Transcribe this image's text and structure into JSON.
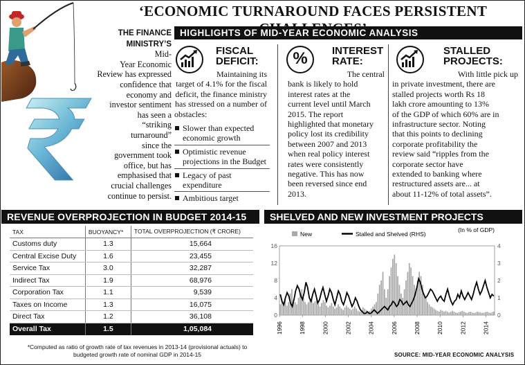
{
  "headline": "‘ECONOMIC TURNAROUND FACES PERSISTENT CHALLENGES’",
  "intro": {
    "lead": "THE FINANCE MINISTRY’S",
    "lines": [
      "Mid-",
      "Year Economic",
      "Review has expressed",
      "confidence that",
      "economy and",
      "investor sentiment",
      "has seen a",
      "“striking",
      "turnaround”",
      "since the",
      "government took",
      "office, but has",
      "emphasised that",
      "crucial challenges",
      "continue to persist."
    ]
  },
  "highlights_title": "HIGHLIGHTS OF MID-YEAR ECONOMIC ANALYSIS",
  "fiscal": {
    "title_1": "FISCAL",
    "title_2": "DEFICIT:",
    "body": [
      "Maintaining its",
      "target of 4.1% for the fiscal",
      "deficit, the finance ministry",
      "has stressed on a number of",
      "obstacles:"
    ],
    "bullets": [
      "Slower than expected economic growth",
      "Optimistic revenue projections in the Budget",
      "Legacy of past expenditure",
      "Ambitious target"
    ]
  },
  "interest": {
    "title_1": "INTEREST",
    "title_2": "RATE:",
    "icon_symbol": "%",
    "body": [
      "The central",
      "bank is likely to hold",
      "interest rates at the",
      "current level until March",
      "2015. The report",
      "highlighted that monetary",
      "policy lost its credibility",
      "between 2007 and 2013",
      "when real policy interest",
      "rates were consistently",
      "negative. This has now",
      "been reversed since end",
      "2013."
    ]
  },
  "stalled": {
    "title_1": "STALLED",
    "title_2": "PROJECTS:",
    "body": [
      "With little pick up",
      "in private investment, there are",
      "stalled projects worth Rs 18",
      "lakh crore amounting to 13%",
      "of the GDP of which 60% are in",
      "infrastructure sector. Noting",
      "that this points to declining",
      "corporate profitability the",
      "review said “ripples from the",
      "corporate sector have",
      "extended to banking where",
      "restructured assets are... at",
      "about 11-12% of total assets”."
    ]
  },
  "revenue": {
    "title": "REVENUE OVERPROJECTION IN BUDGET 2014-15",
    "headers": [
      "TAX",
      "BUOYANCY*",
      "TOTAL OVERPROJECTION (₹ CRORE)"
    ],
    "rows": [
      [
        "Customs duty",
        "1.3",
        "15,664"
      ],
      [
        "Central Excise Duty",
        "1.6",
        "23,455"
      ],
      [
        "Service Tax",
        "3.0",
        "32,287"
      ],
      [
        "Indirect Tax",
        "1.9",
        "68,976"
      ],
      [
        "Corporation Tax",
        "1.1",
        "9,539"
      ],
      [
        "Taxes on Income",
        "1.3",
        "16,075"
      ],
      [
        "Direct Tax",
        "1.2",
        "36,108"
      ]
    ],
    "total": [
      "Overall Tax",
      "1.5",
      "1,05,084"
    ],
    "footnote": "*Computed as ratio of growth rate of tax revenues in 2013-14 (provisional actuals) to budgeted growth rate of nominal GDP in 2014-15"
  },
  "projects": {
    "title": "SHELVED AND NEW INVESTMENT PROJECTS",
    "source": "SOURCE: MID-YEAR ECONOMIC ANALYSIS"
  },
  "chart_data": {
    "type": "bar",
    "unit_label": "(In % of GDP)",
    "x_ticks": [
      "1996",
      "1998",
      "2000",
      "2002",
      "2004",
      "2006",
      "2008",
      "2010",
      "2012",
      "2014"
    ],
    "x_range": [
      1996,
      2014.75
    ],
    "ylim_left": [
      0,
      16
    ],
    "yticks_left": [
      0,
      4,
      8,
      12,
      16
    ],
    "ylim_right": [
      0,
      4
    ],
    "yticks_right": [
      0,
      1,
      2,
      3,
      4
    ],
    "legend_position": "top",
    "series": [
      {
        "name": "New",
        "kind": "bar",
        "axis": "left",
        "color": "#aaaaaa",
        "values": [
          2.5,
          3.5,
          3,
          4,
          2.2,
          3,
          5,
          6,
          3.5,
          3,
          2.5,
          4,
          5,
          6,
          4,
          3,
          2.5,
          3,
          3.5,
          4,
          2.8,
          3.2,
          3.8,
          2.5,
          2,
          2.8,
          3.5,
          3,
          2.2,
          1.8,
          2.2,
          2.8,
          2,
          1.5,
          1.8,
          2.5,
          2,
          1.5,
          1.2,
          1.8,
          2.2,
          1.8,
          1.5,
          1.2,
          1.5,
          2,
          1.5,
          1,
          0.8,
          1.2,
          1.8,
          1.5,
          1.2,
          0.8,
          1,
          1.5,
          2,
          2.5,
          3,
          5,
          7,
          8,
          10,
          6,
          4,
          6,
          9,
          11,
          13,
          14,
          12,
          9,
          7,
          5,
          4,
          6,
          8,
          10,
          12,
          11,
          9,
          7,
          6,
          8,
          10,
          9,
          7,
          5,
          4,
          3,
          2.5,
          2,
          1.8,
          1.5,
          1.2,
          1,
          0.8,
          1.2,
          1,
          0.8,
          1,
          0.8,
          0.6,
          0.8,
          1,
          0.8,
          0.6,
          0.5,
          0.7,
          0.8,
          1,
          0.8,
          0.6,
          0.5,
          0.7,
          0.8,
          0.6,
          0.5,
          0.6,
          0.8,
          0.7,
          0.6,
          0.5,
          0.6,
          0.7,
          0.8,
          0.6,
          0.5,
          0.7,
          0.8
        ]
      },
      {
        "name": "Stalled and Shelved (RHS)",
        "kind": "line",
        "axis": "right",
        "color": "#000000",
        "values": [
          1.2,
          0.8,
          0.6,
          1.0,
          1.3,
          1.1,
          0.7,
          0.5,
          0.9,
          1.4,
          1.7,
          1.5,
          1.1,
          0.9,
          1.3,
          1.9,
          1.6,
          1.0,
          0.8,
          1.2,
          1.5,
          1.1,
          0.7,
          0.9,
          1.3,
          1.6,
          1.2,
          0.8,
          1.1,
          1.5,
          1.3,
          0.9,
          0.6,
          1.0,
          1.4,
          1.2,
          0.8,
          0.6,
          0.9,
          1.3,
          1.1,
          0.8,
          0.5,
          0.7,
          1.0,
          0.8,
          0.5,
          0.3,
          0.2,
          0.1,
          0.1,
          0.2,
          0.1,
          0.1,
          0.2,
          0.3,
          0.2,
          0.1,
          0.2,
          0.3,
          0.4,
          0.5,
          0.4,
          0.3,
          0.5,
          0.6,
          0.8,
          0.7,
          0.5,
          0.6,
          0.9,
          0.8,
          0.6,
          0.7,
          0.8,
          0.6,
          0.5,
          0.7,
          0.9,
          1.2,
          1.6,
          2.1,
          1.9,
          1.5,
          1.2,
          1.0,
          1.1,
          1.3,
          1.5,
          1.4,
          1.2,
          1.0,
          0.8,
          1.0,
          1.1,
          0.9,
          0.8,
          1.2,
          1.5,
          1.1,
          0.8,
          0.6,
          0.8,
          0.9,
          1.2,
          1.0,
          1.4,
          1.1,
          0.9,
          1.1,
          1.3,
          1.1,
          0.9,
          1.2,
          1.6,
          1.9,
          1.5,
          1.2,
          1.4,
          1.7,
          2.0,
          1.6,
          1.3,
          1.0,
          1.2,
          1.1
        ]
      }
    ]
  }
}
